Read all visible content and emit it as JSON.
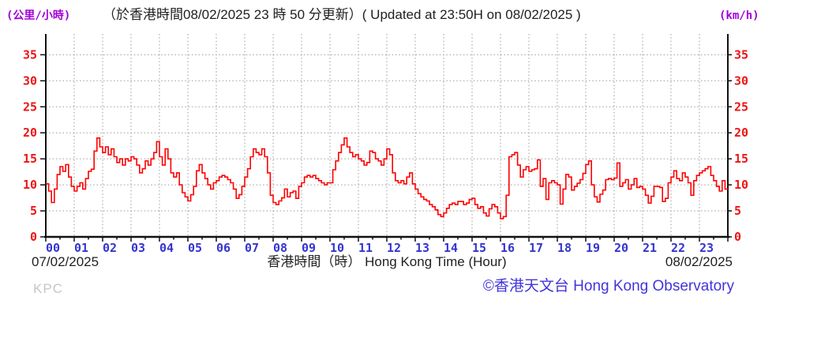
{
  "header": {
    "unit_left": "(公里/小時)",
    "title": "（於香港時間08/02/2025 23 時 50 分更新）( Updated at 23:50H on 08/02/2025 )",
    "unit_right": "(km/h)"
  },
  "footer": {
    "date_left": "07/02/2025",
    "date_right": "08/02/2025",
    "xaxis_label": "香港時間（時） Hong Kong Time (Hour)",
    "station_code": "KPC",
    "copyright": "©香港天文台 Hong Kong Observatory"
  },
  "colors": {
    "line": "#ff0000",
    "ytick_labels": "#ee1414",
    "xtick_labels": "#3434d0",
    "units": "#a000d8",
    "grid": "#9a9a9a",
    "copyright": "#4334da",
    "station": "#c6c6c6",
    "text": "#1f1f1f"
  },
  "chart_data": {
    "type": "line",
    "title": "（於香港時間08/02/2025 23 時 50 分更新）( Updated at 23:50H on 08/02/2025 )",
    "xlabel": "香港時間（時） Hong Kong Time (Hour)",
    "ylabel_left": "(公里/小時)",
    "ylabel_right": "(km/h)",
    "date_start": "07/02/2025",
    "date_end": "08/02/2025",
    "xlim": [
      0,
      24
    ],
    "ylim": [
      0,
      39
    ],
    "yticks": [
      0,
      5,
      10,
      15,
      20,
      25,
      30,
      35
    ],
    "xtick_labels": [
      "00",
      "01",
      "02",
      "03",
      "04",
      "05",
      "06",
      "07",
      "08",
      "09",
      "10",
      "11",
      "12",
      "13",
      "14",
      "15",
      "16",
      "17",
      "18",
      "19",
      "20",
      "21",
      "22",
      "23"
    ],
    "grid": true,
    "line_color": "#ff0000",
    "x_start_hour": 0,
    "x_step_hours": 0.1,
    "values": [
      10.2,
      8.8,
      6.6,
      9.2,
      12.0,
      13.5,
      12.6,
      13.9,
      11.5,
      9.7,
      8.8,
      9.7,
      10.4,
      9.2,
      11.2,
      12.6,
      13.0,
      16.5,
      19.0,
      17.3,
      16.2,
      17.3,
      15.8,
      16.9,
      15.4,
      14.3,
      15.0,
      13.8,
      15.0,
      14.6,
      15.4,
      15.0,
      13.8,
      12.3,
      13.1,
      14.6,
      13.8,
      15.0,
      16.2,
      18.3,
      15.4,
      13.8,
      16.9,
      15.0,
      12.3,
      11.5,
      12.3,
      10.0,
      8.5,
      7.7,
      6.9,
      8.1,
      9.7,
      12.7,
      13.9,
      12.3,
      11.2,
      10.0,
      9.2,
      10.4,
      10.8,
      11.5,
      11.8,
      11.5,
      11.0,
      10.4,
      9.2,
      7.4,
      8.1,
      9.7,
      11.5,
      13.1,
      15.4,
      16.9,
      16.2,
      15.8,
      16.9,
      15.4,
      12.3,
      8.0,
      6.6,
      6.2,
      6.9,
      7.5,
      9.2,
      7.7,
      8.5,
      8.8,
      7.4,
      9.7,
      10.4,
      11.5,
      11.8,
      11.5,
      11.8,
      11.2,
      10.8,
      10.4,
      10.0,
      10.4,
      10.4,
      12.9,
      14.6,
      16.2,
      17.7,
      19.0,
      17.3,
      16.2,
      15.4,
      15.8,
      15.0,
      14.6,
      13.8,
      14.3,
      16.5,
      16.2,
      15.0,
      14.6,
      13.8,
      15.0,
      16.9,
      15.8,
      12.3,
      10.8,
      10.4,
      10.8,
      10.2,
      11.5,
      12.3,
      10.2,
      9.2,
      8.3,
      7.7,
      7.2,
      6.9,
      6.2,
      5.8,
      5.2,
      4.3,
      3.9,
      4.6,
      5.5,
      6.2,
      6.5,
      6.2,
      6.8,
      6.8,
      6.2,
      6.5,
      7.2,
      7.4,
      6.2,
      5.5,
      5.8,
      4.6,
      4.0,
      5.4,
      6.2,
      5.8,
      4.6,
      3.5,
      3.9,
      8.0,
      15.4,
      15.8,
      16.2,
      13.8,
      11.5,
      12.9,
      13.5,
      12.6,
      12.9,
      13.1,
      14.8,
      9.7,
      11.2,
      7.2,
      10.4,
      10.8,
      10.4,
      10.0,
      6.3,
      9.2,
      12.0,
      11.5,
      9.0,
      9.7,
      10.3,
      11.0,
      12.2,
      13.9,
      14.6,
      10.0,
      7.7,
      6.7,
      8.2,
      9.0,
      11.0,
      11.2,
      11.0,
      11.3,
      14.2,
      9.7,
      10.4,
      11.0,
      9.2,
      10.0,
      11.2,
      9.5,
      9.7,
      9.2,
      8.0,
      6.5,
      7.8,
      9.7,
      9.7,
      9.5,
      6.8,
      7.4,
      10.4,
      11.5,
      12.7,
      11.2,
      10.8,
      12.3,
      11.5,
      10.4,
      8.0,
      10.8,
      11.8,
      12.3,
      12.7,
      13.1,
      13.5,
      11.8,
      10.8,
      9.7,
      8.8,
      10.8,
      9.2
    ]
  }
}
